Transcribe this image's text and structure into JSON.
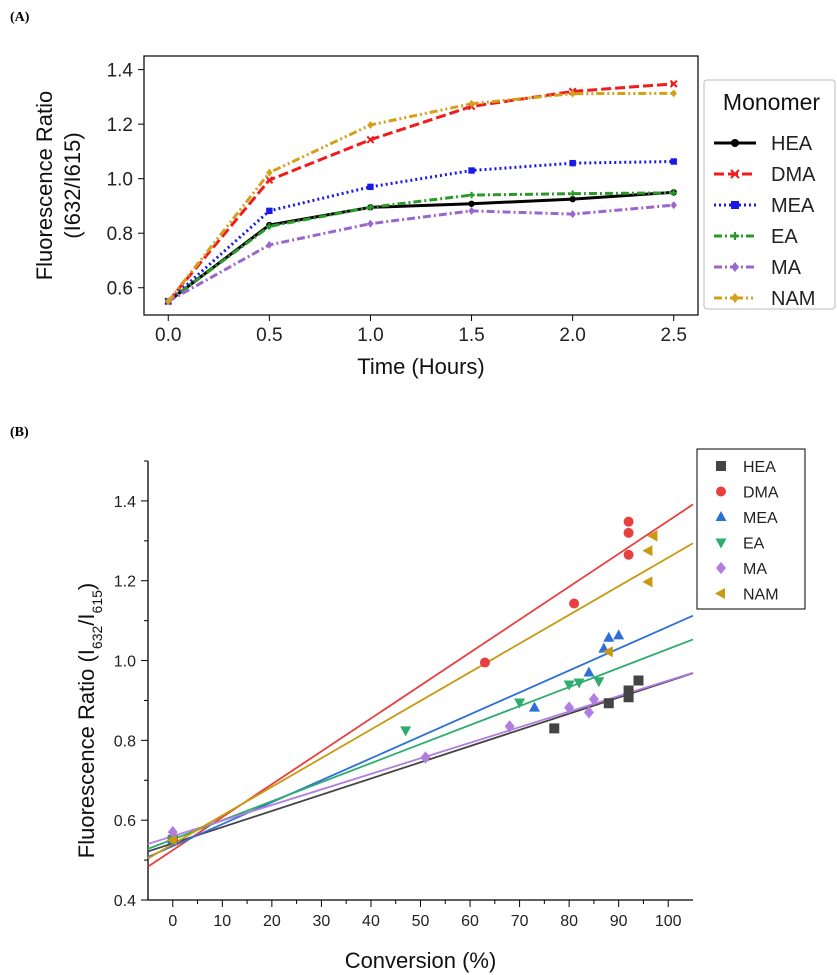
{
  "panels": {
    "a": "(A)",
    "b": "(B)"
  },
  "chart_data": [
    {
      "type": "line",
      "xlabel": "Time (Hours)",
      "ylabel_main": "Fluorescence Ratio",
      "ylabel_sub": "(I632/I615)",
      "xlim": [
        -0.12,
        2.62
      ],
      "ylim": [
        0.5,
        1.45
      ],
      "xticks": [
        "0.0",
        "0.5",
        "1.0",
        "1.5",
        "2.0",
        "2.5"
      ],
      "yticks": [
        "0.6",
        "0.8",
        "1.0",
        "1.2",
        "1.4"
      ],
      "legend_title": "Monomer",
      "legend_position": "outside-right",
      "grid": false,
      "x": [
        0,
        0.5,
        1.0,
        1.5,
        2.0,
        2.5
      ],
      "series": [
        {
          "name": "HEA",
          "color": "#000000",
          "dash": "solid",
          "marker": "circle",
          "values": [
            0.55,
            0.83,
            0.895,
            0.908,
            0.925,
            0.95
          ]
        },
        {
          "name": "DMA",
          "color": "#ee1c1c",
          "dash": "dashed",
          "marker": "x",
          "values": [
            0.55,
            0.995,
            1.143,
            1.265,
            1.32,
            1.348
          ]
        },
        {
          "name": "MEA",
          "color": "#1a1ae6",
          "dash": "dotted",
          "marker": "square",
          "values": [
            0.55,
            0.882,
            0.97,
            1.03,
            1.057,
            1.063
          ]
        },
        {
          "name": "EA",
          "color": "#2a9a2a",
          "dash": "dashdot",
          "marker": "plus",
          "values": [
            0.55,
            0.825,
            0.895,
            0.94,
            0.945,
            0.948
          ]
        },
        {
          "name": "MA",
          "color": "#9966cc",
          "dash": "dashdot",
          "marker": "diamond",
          "values": [
            0.55,
            0.757,
            0.835,
            0.882,
            0.87,
            0.903
          ]
        },
        {
          "name": "NAM",
          "color": "#d4a017",
          "dash": "dashdotdot",
          "marker": "diamond",
          "values": [
            0.55,
            1.022,
            1.197,
            1.275,
            1.312,
            1.313
          ]
        }
      ]
    },
    {
      "type": "scatter",
      "xlabel": "Conversion (%)",
      "ylabel_main": "Fluorescence Ratio (I",
      "ylabel_sub1": "632",
      "ylabel_mid": "/I",
      "ylabel_sub2": "615",
      "ylabel_end": ")",
      "xlim": [
        -5,
        105
      ],
      "ylim": [
        0.4,
        1.5
      ],
      "xticks": [
        "0",
        "10",
        "20",
        "30",
        "40",
        "50",
        "60",
        "70",
        "80",
        "90",
        "100"
      ],
      "yticks": [
        "0.4",
        "0.6",
        "0.8",
        "1.0",
        "1.2",
        "1.4"
      ],
      "legend_position": "top-right",
      "grid": false,
      "series": [
        {
          "name": "HEA",
          "color": "#444444",
          "marker": "square",
          "points": [
            [
              0,
              0.55
            ],
            [
              77,
              0.83
            ],
            [
              88,
              0.893
            ],
            [
              92,
              0.908
            ],
            [
              92,
              0.925
            ],
            [
              94,
              0.95
            ]
          ],
          "fit": [
            0.542,
            0.00406
          ]
        },
        {
          "name": "DMA",
          "color": "#e84040",
          "marker": "circle",
          "points": [
            [
              0,
              0.55
            ],
            [
              63,
              0.995
            ],
            [
              81,
              1.143
            ],
            [
              92,
              1.265
            ],
            [
              92,
              1.32
            ],
            [
              92,
              1.348
            ]
          ],
          "fit": [
            0.525,
            0.00825
          ]
        },
        {
          "name": "MEA",
          "color": "#2e6fd8",
          "marker": "triangle-up",
          "points": [
            [
              0,
              0.55
            ],
            [
              73,
              0.882
            ],
            [
              84,
              0.97
            ],
            [
              87,
              1.03
            ],
            [
              88,
              1.057
            ],
            [
              90,
              1.063
            ]
          ],
          "fit": [
            0.535,
            0.0055
          ]
        },
        {
          "name": "EA",
          "color": "#2fad6e",
          "marker": "triangle-down",
          "points": [
            [
              0,
              0.55
            ],
            [
              47,
              0.825
            ],
            [
              70,
              0.895
            ],
            [
              80,
              0.94
            ],
            [
              82,
              0.945
            ],
            [
              86,
              0.948
            ]
          ],
          "fit": [
            0.552,
            0.00477
          ]
        },
        {
          "name": "MA",
          "color": "#b07ee0",
          "marker": "diamond",
          "points": [
            [
              0,
              0.57
            ],
            [
              51,
              0.757
            ],
            [
              68,
              0.835
            ],
            [
              80,
              0.882
            ],
            [
              84,
              0.87
            ],
            [
              85,
              0.903
            ]
          ],
          "fit": [
            0.56,
            0.0039
          ]
        },
        {
          "name": "NAM",
          "color": "#c79a12",
          "marker": "triangle-left",
          "points": [
            [
              0,
              0.55
            ],
            [
              88,
              1.022
            ],
            [
              96,
              1.197
            ],
            [
              96,
              1.275
            ],
            [
              97,
              1.312
            ],
            [
              97,
              1.313
            ]
          ],
          "fit": [
            0.54,
            0.00718
          ]
        }
      ]
    }
  ]
}
